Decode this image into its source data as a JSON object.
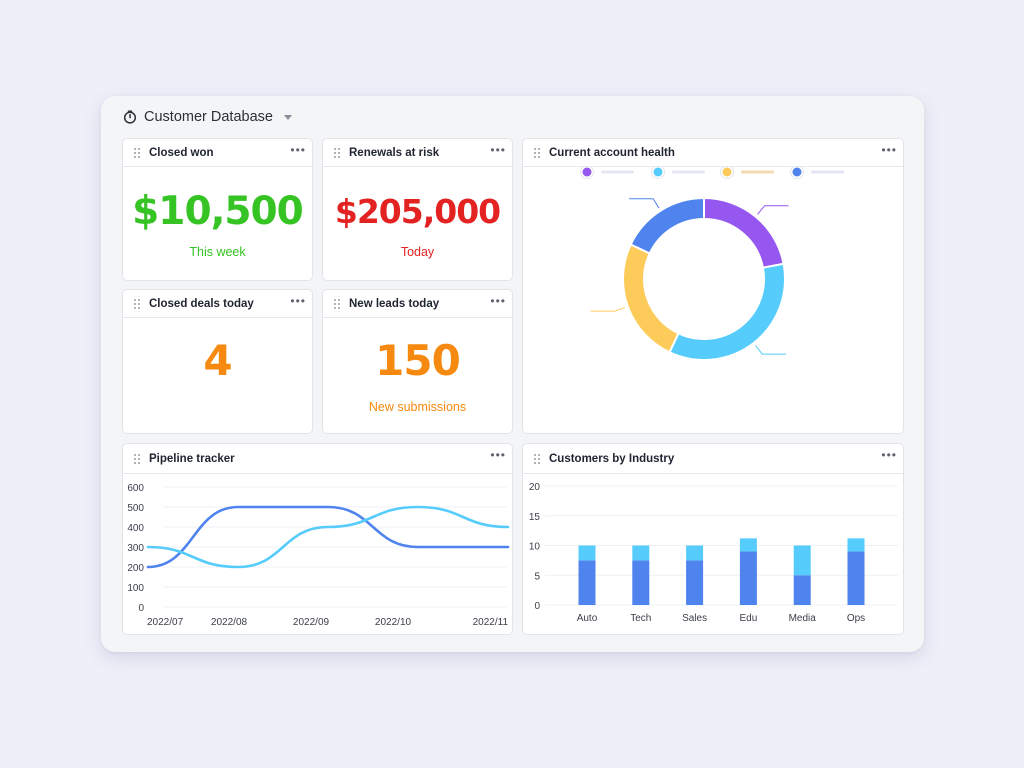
{
  "header": {
    "title": "Customer Database"
  },
  "colors": {
    "green": "#35c423",
    "red": "#e32222",
    "orange": "#f6890f",
    "purple": "#9557f0",
    "cyan": "#55ccfb",
    "yellow": "#fdcb5a",
    "blue": "#4f83ee"
  },
  "cards": {
    "closed_won": {
      "title": "Closed won",
      "value": "$10,500",
      "caption": "This week"
    },
    "renewals": {
      "title": "Renewals at risk",
      "value": "$205,000",
      "caption": "Today"
    },
    "closed_deals": {
      "title": "Closed deals today",
      "value": "4"
    },
    "new_leads": {
      "title": "New leads today",
      "value": "150",
      "caption": "New submissions"
    },
    "health": {
      "title": "Current account health"
    },
    "pipeline": {
      "title": "Pipeline tracker"
    },
    "industry": {
      "title": "Customers by Industry"
    }
  },
  "menu_icon": "more-horizontal-icon",
  "chart_data": [
    {
      "type": "pie",
      "donut": true,
      "legend": "top",
      "slices": [
        {
          "color": "#9557f0",
          "value": 22
        },
        {
          "color": "#55ccfb",
          "value": 35
        },
        {
          "color": "#fdcb5a",
          "value": 25
        },
        {
          "color": "#4f83ee",
          "value": 18
        }
      ]
    },
    {
      "type": "line",
      "categories": [
        "2022/07",
        "2022/08",
        "2022/09",
        "2022/10",
        "2022/11"
      ],
      "yticks": [
        0,
        100,
        200,
        300,
        400,
        500,
        600
      ],
      "ylim": [
        0,
        600
      ],
      "grid": true,
      "series": [
        {
          "color": "#4f83ee",
          "values": [
            200,
            500,
            500,
            300,
            300
          ]
        },
        {
          "color": "#55ccfb",
          "values": [
            300,
            200,
            400,
            500,
            400
          ]
        }
      ]
    },
    {
      "type": "bar",
      "stacked": true,
      "categories": [
        "Auto",
        "Tech",
        "Sales",
        "Edu",
        "Media",
        "Ops"
      ],
      "yticks": [
        0,
        5,
        10,
        15,
        20
      ],
      "ylim": [
        0,
        20
      ],
      "grid": true,
      "series": [
        {
          "color": "#4f83ee",
          "values": [
            7.5,
            7.5,
            7.5,
            9,
            5,
            9
          ]
        },
        {
          "color": "#55ccfb",
          "values": [
            2.5,
            2.5,
            2.5,
            2.2,
            5,
            2.2
          ]
        }
      ]
    }
  ]
}
